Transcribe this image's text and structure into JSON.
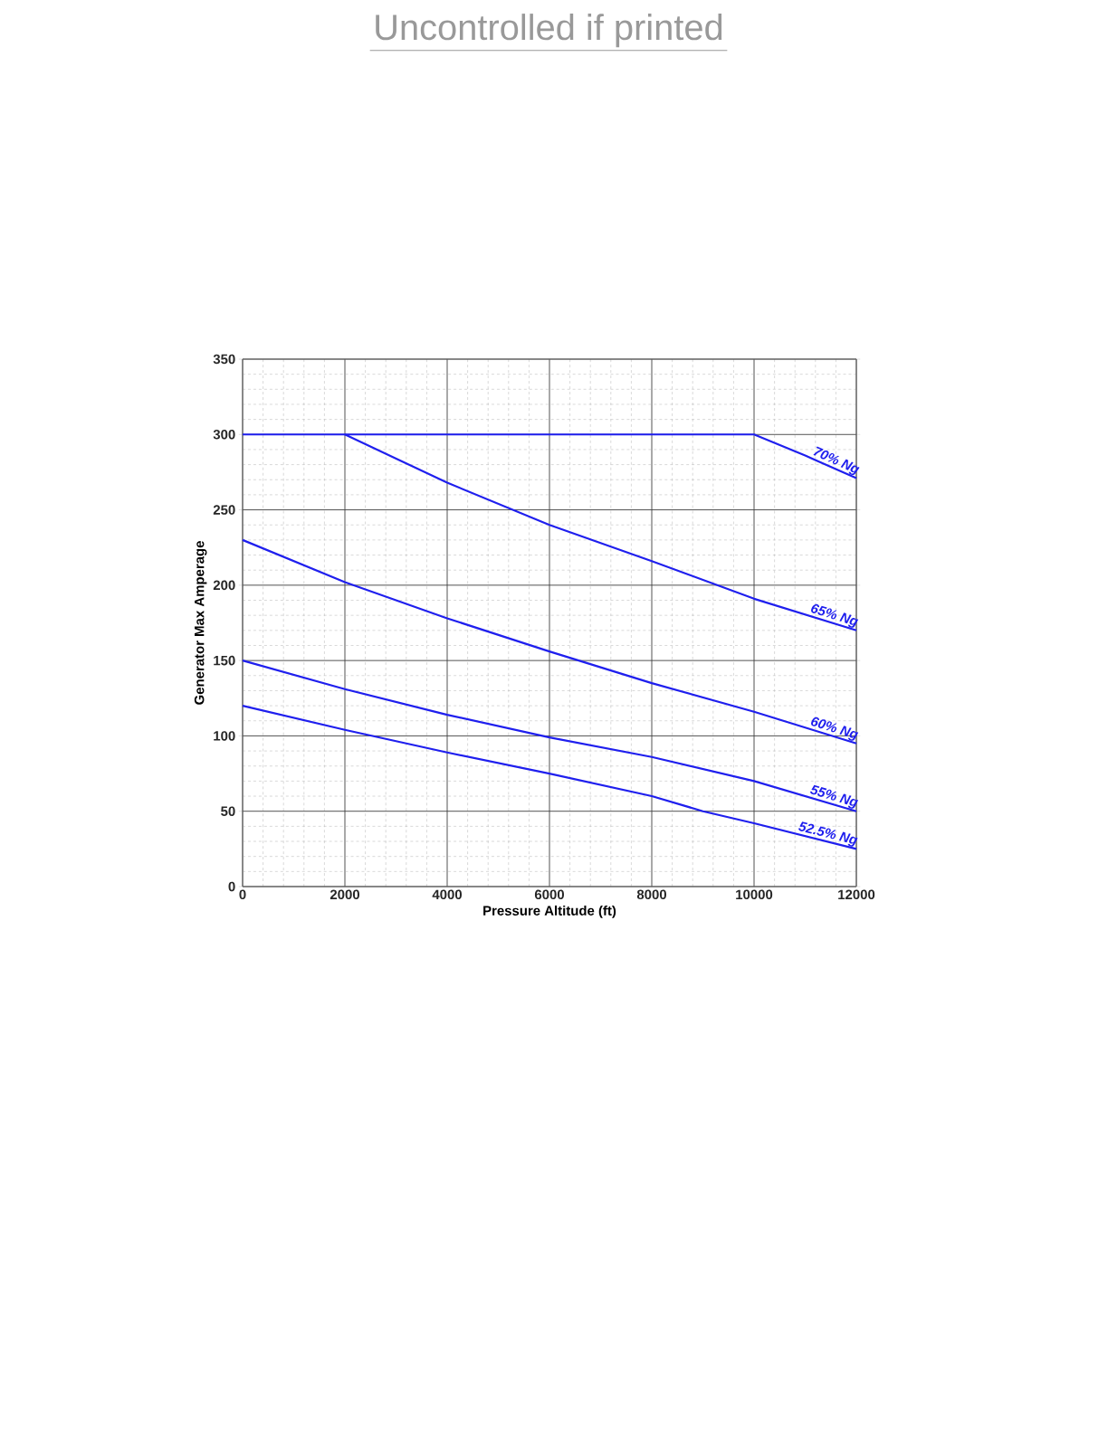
{
  "chart_data": {
    "type": "line",
    "xlabel": "Pressure Altitude (ft)",
    "ylabel": "Generator Max Amperage",
    "annotations": [
      "Uncontrolled if printed"
    ],
    "xlim": [
      0,
      12000
    ],
    "ylim": [
      0,
      350
    ],
    "xticks": [
      0,
      2000,
      4000,
      6000,
      8000,
      10000,
      12000
    ],
    "yticks": [
      0,
      50,
      100,
      150,
      200,
      250,
      300,
      350
    ],
    "grid": true,
    "marker": "none",
    "line_style": "solid",
    "series": [
      {
        "name": "70% Ng",
        "color": "#1f1fee",
        "x": [
          0,
          10000,
          11000,
          12000
        ],
        "values": [
          300,
          300,
          286,
          271
        ]
      },
      {
        "name": "65% Ng",
        "color": "#1f1fee",
        "x": [
          2000,
          4000,
          6000,
          8000,
          10000,
          12000
        ],
        "values": [
          300,
          268,
          240,
          216,
          191,
          170
        ]
      },
      {
        "name": "60% Ng",
        "color": "#1f1fee",
        "x": [
          0,
          2000,
          4000,
          6000,
          8000,
          10000,
          12000
        ],
        "values": [
          230,
          202,
          178,
          156,
          135,
          116,
          95
        ]
      },
      {
        "name": "55% Ng",
        "color": "#1f1fee",
        "x": [
          0,
          2000,
          4000,
          6000,
          8000,
          10000,
          12000
        ],
        "values": [
          150,
          131,
          114,
          99,
          86,
          70,
          50
        ]
      },
      {
        "name": "52.5% Ng",
        "color": "#1f1fee",
        "x": [
          0,
          2000,
          4000,
          6000,
          8000,
          9000,
          10000,
          12000
        ],
        "values": [
          120,
          104,
          89,
          75,
          60,
          50,
          42,
          25
        ]
      }
    ]
  }
}
